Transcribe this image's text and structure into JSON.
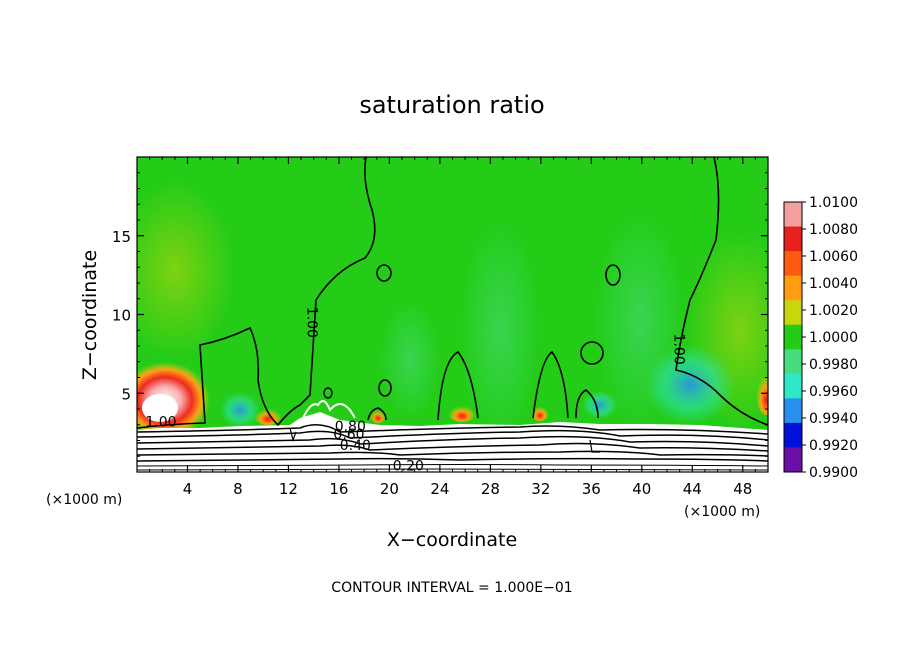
{
  "chart_data": {
    "type": "heatmap",
    "title": "saturation ratio",
    "xlabel": "X−coordinate",
    "ylabel": "Z−coordinate",
    "x_unit_left": "(×1000 m)",
    "x_unit_right": "(×1000 m)",
    "xlim": [
      0,
      50
    ],
    "ylim": [
      0,
      20
    ],
    "xticks": [
      4,
      8,
      12,
      16,
      20,
      24,
      28,
      32,
      36,
      40,
      44,
      48
    ],
    "yticks": [
      5,
      10,
      15
    ],
    "grid": false,
    "footer": "CONTOUR INTERVAL = 1.000E−01",
    "colorbar": {
      "values": [
        "1.0100",
        "1.0080",
        "1.0060",
        "1.0040",
        "1.0020",
        "1.0000",
        "0.9980",
        "0.9960",
        "0.9940",
        "0.9920",
        "0.9900"
      ],
      "colors": [
        "#f4a0a0",
        "#e8201c",
        "#ff5a12",
        "#ff9c10",
        "#c8d60e",
        "#24cc18",
        "#48dc80",
        "#2ee8c8",
        "#2a90f0",
        "#0010d8",
        "#6a10a8"
      ]
    },
    "contour_labels": [
      {
        "text": "1.00",
        "x": 1.9,
        "y": 2.9
      },
      {
        "text": "1.00",
        "x": 13.5,
        "y": 9.5
      },
      {
        "text": "1.00",
        "x": 42.6,
        "y": 7.8
      },
      {
        "text": "0.80",
        "x": 16.9,
        "y": 2.6
      },
      {
        "text": "0.60",
        "x": 16.8,
        "y": 2.1
      },
      {
        "text": "0.40",
        "x": 17.3,
        "y": 1.4
      },
      {
        "text": "0.20",
        "x": 21.5,
        "y": 0.1
      }
    ]
  }
}
